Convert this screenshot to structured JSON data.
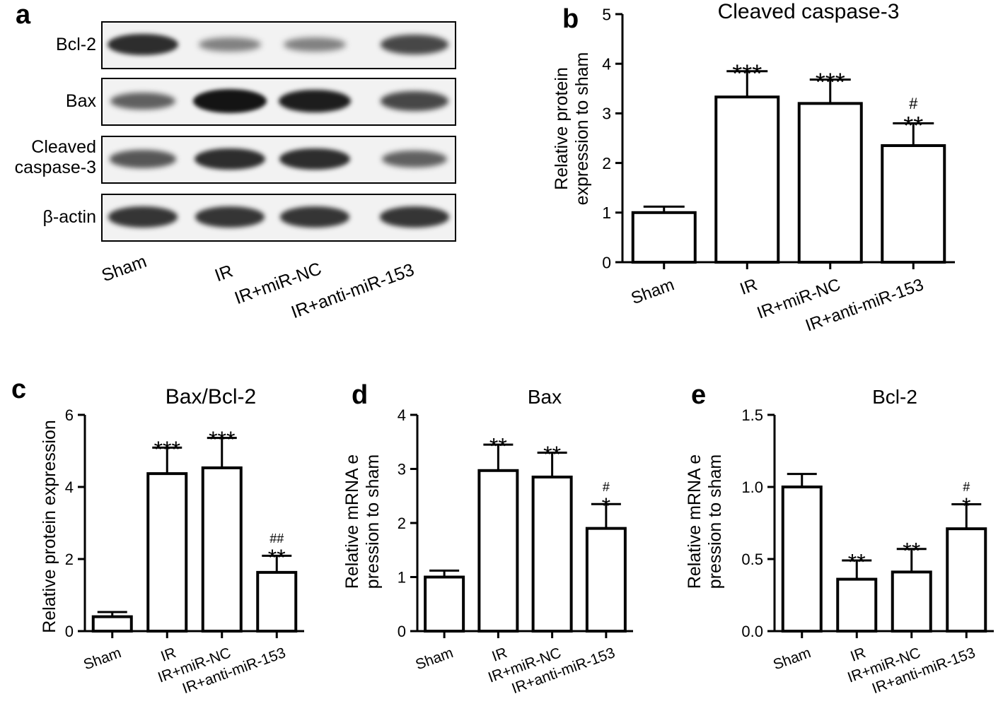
{
  "panels": {
    "a": "a",
    "b": "b",
    "c": "c",
    "d": "d",
    "e": "e"
  },
  "blot": {
    "rows": [
      {
        "label": "Bcl-2",
        "intensities": [
          0.85,
          0.35,
          0.35,
          0.7
        ]
      },
      {
        "label": "Bax",
        "intensities": [
          0.55,
          1.0,
          0.95,
          0.7
        ]
      },
      {
        "label": "Cleaved caspase-3",
        "intensities": [
          0.6,
          0.85,
          0.85,
          0.55
        ]
      },
      {
        "label": "β-actin",
        "intensities": [
          0.8,
          0.8,
          0.8,
          0.8
        ]
      }
    ],
    "lanes": [
      "Sham",
      "IR",
      "IR+miR-NC",
      "IR+anti-miR-153"
    ]
  },
  "chart_data": [
    {
      "panel": "b",
      "type": "bar",
      "title": "Cleaved caspase-3",
      "ylabel": "Relative protein expression to sham",
      "categories": [
        "Sham",
        "IR",
        "IR+miR-NC",
        "IR+anti-miR-153"
      ],
      "values": [
        1.0,
        3.33,
        3.2,
        2.35
      ],
      "errors": [
        0.12,
        0.52,
        0.48,
        0.45
      ],
      "annotations": [
        [
          ""
        ],
        [
          "***"
        ],
        [
          "***"
        ],
        [
          "#",
          "**"
        ]
      ],
      "ylim": [
        0,
        5
      ],
      "yticks": [
        "0",
        "1",
        "2",
        "3",
        "4",
        "5"
      ],
      "grid": false
    },
    {
      "panel": "c",
      "type": "bar",
      "title": "Bax/Bcl-2",
      "ylabel": "Relative protein expression",
      "categories": [
        "Sham",
        "IR",
        "IR+miR-NC",
        "IR+anti-miR-153"
      ],
      "values": [
        0.4,
        4.37,
        4.53,
        1.63
      ],
      "errors": [
        0.13,
        0.72,
        0.83,
        0.46
      ],
      "annotations": [
        [
          ""
        ],
        [
          "***"
        ],
        [
          "***"
        ],
        [
          "##",
          "**"
        ]
      ],
      "ylim": [
        0,
        6
      ],
      "yticks": [
        "0",
        "2",
        "4",
        "6"
      ],
      "grid": false
    },
    {
      "panel": "d",
      "type": "bar",
      "title": "Bax",
      "ylabel": "Relative mRNA expression to sham",
      "categories": [
        "Sham",
        "IR",
        "IR+miR-NC",
        "IR+anti-miR-153"
      ],
      "values": [
        1.0,
        2.97,
        2.85,
        1.9
      ],
      "errors": [
        0.12,
        0.48,
        0.45,
        0.45
      ],
      "annotations": [
        [
          ""
        ],
        [
          "**"
        ],
        [
          "**"
        ],
        [
          "#",
          "*"
        ]
      ],
      "ylim": [
        0,
        4
      ],
      "yticks": [
        "0",
        "1",
        "2",
        "3",
        "4"
      ],
      "grid": false
    },
    {
      "panel": "e",
      "type": "bar",
      "title": "Bcl-2",
      "ylabel": "Relative mRNA expression to sham",
      "categories": [
        "Sham",
        "IR",
        "IR+miR-NC",
        "IR+anti-miR-153"
      ],
      "values": [
        1.0,
        0.36,
        0.41,
        0.71
      ],
      "errors": [
        0.09,
        0.13,
        0.16,
        0.17
      ],
      "annotations": [
        [
          ""
        ],
        [
          "**"
        ],
        [
          "**"
        ],
        [
          "#",
          "*"
        ]
      ],
      "ylim": [
        0,
        1.5
      ],
      "yticks": [
        "0.0",
        "0.5",
        "1.0",
        "1.5"
      ],
      "grid": false
    }
  ]
}
